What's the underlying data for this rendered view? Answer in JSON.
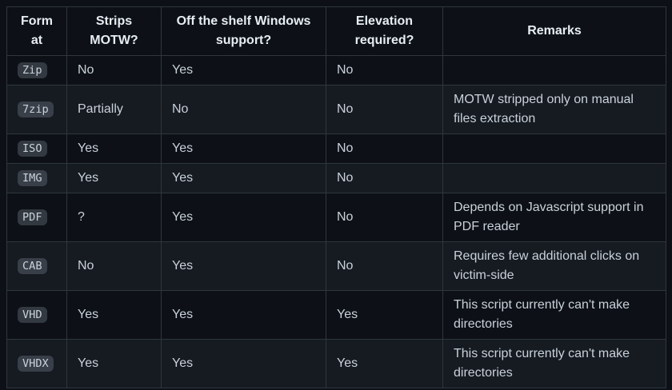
{
  "theme": {
    "page_bg": "#0d1117",
    "row_alt_bg": "#161b22",
    "border_color": "#30363d",
    "text_color": "#c9d1d9",
    "header_text_color": "#e6edf3",
    "code_badge_bg": "rgba(110,118,129,0.4)"
  },
  "table": {
    "columns": [
      "Format",
      "Strips MOTW?",
      "Off the shelf Windows support?",
      "Elevation required?",
      "Remarks"
    ],
    "field_keys": [
      "format",
      "strips_motw",
      "windows_support",
      "elevation_required",
      "remarks"
    ],
    "rows": [
      {
        "format": "Zip",
        "strips_motw": "No",
        "windows_support": "Yes",
        "elevation_required": "No",
        "remarks": ""
      },
      {
        "format": "7zip",
        "strips_motw": "Partially",
        "windows_support": "No",
        "elevation_required": "No",
        "remarks": "MOTW stripped only on manual files extraction"
      },
      {
        "format": "ISO",
        "strips_motw": "Yes",
        "windows_support": "Yes",
        "elevation_required": "No",
        "remarks": ""
      },
      {
        "format": "IMG",
        "strips_motw": "Yes",
        "windows_support": "Yes",
        "elevation_required": "No",
        "remarks": ""
      },
      {
        "format": "PDF",
        "strips_motw": "?",
        "windows_support": "Yes",
        "elevation_required": "No",
        "remarks": "Depends on Javascript support in PDF reader"
      },
      {
        "format": "CAB",
        "strips_motw": "No",
        "windows_support": "Yes",
        "elevation_required": "No",
        "remarks": "Requires few additional clicks on victim-side"
      },
      {
        "format": "VHD",
        "strips_motw": "Yes",
        "windows_support": "Yes",
        "elevation_required": "Yes",
        "remarks": "This script currently can't make directories"
      },
      {
        "format": "VHDX",
        "strips_motw": "Yes",
        "windows_support": "Yes",
        "elevation_required": "Yes",
        "remarks": "This script currently can't make directories"
      }
    ]
  }
}
